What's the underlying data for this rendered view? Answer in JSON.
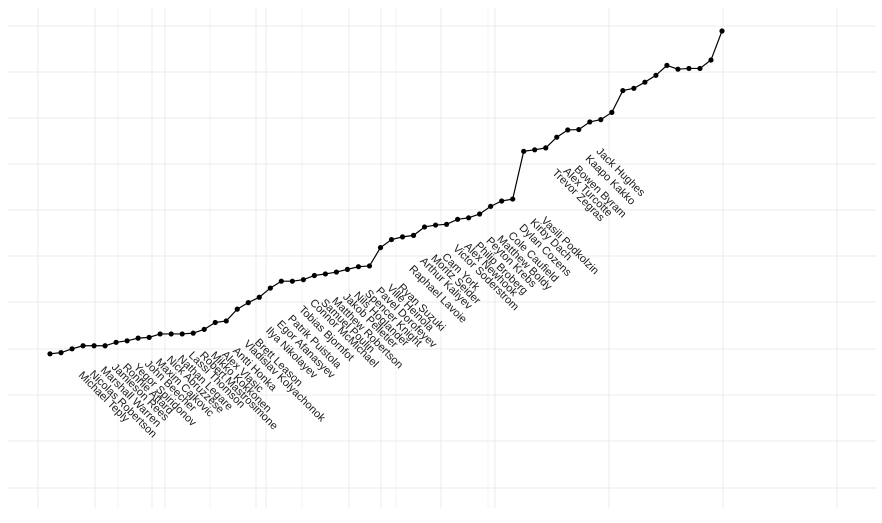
{
  "chart_data": {
    "type": "line",
    "title": "",
    "xlabel": "",
    "ylabel": "",
    "grid": true,
    "colors": {
      "line": "#000000",
      "point": "#000000",
      "grid": "#ebebeb",
      "background": "#ffffff"
    },
    "y_range": [
      0,
      1
    ],
    "points": [
      {
        "rank": 62,
        "name": "Michael Teply",
        "value": 0.155
      },
      {
        "rank": 61,
        "name": "Nicolas Robertson",
        "value": 0.158
      },
      {
        "rank": 60,
        "name": "Marshall Warren",
        "value": 0.168
      },
      {
        "rank": 59,
        "name": "Jamieson Rees",
        "value": 0.176
      },
      {
        "rank": 58,
        "name": "Ronnie Attard",
        "value": 0.176
      },
      {
        "rank": 57,
        "name": "Yegor Spiridonov",
        "value": 0.176
      },
      {
        "rank": 56,
        "name": "John Beecher",
        "value": 0.185
      },
      {
        "rank": 55,
        "name": "Maxim Cajkovic",
        "value": 0.189
      },
      {
        "rank": 54,
        "name": "Nick Abruzzese",
        "value": 0.196
      },
      {
        "rank": 53,
        "name": "Nathan Legare",
        "value": 0.198
      },
      {
        "rank": 52,
        "name": "Lassi Thomson",
        "value": 0.207
      },
      {
        "rank": 51,
        "name": "Robert Mastrosimone",
        "value": 0.207
      },
      {
        "rank": 50,
        "name": "Mikko Kokkonen",
        "value": 0.207
      },
      {
        "rank": 49,
        "name": "Alex Vlasic",
        "value": 0.209
      },
      {
        "rank": 48,
        "name": "Antti Honka",
        "value": 0.219
      },
      {
        "rank": 47,
        "name": "Vladislav Kolyachonok",
        "value": 0.237
      },
      {
        "rank": 46,
        "name": "Brett Leason",
        "value": 0.241
      },
      {
        "rank": 45,
        "name": "Ilya Nikolayev",
        "value": 0.272
      },
      {
        "rank": 44,
        "name": "Egor Afanasyev",
        "value": 0.289
      },
      {
        "rank": 43,
        "name": "Patrik Puistola",
        "value": 0.303
      },
      {
        "rank": 42,
        "name": "Tobias Bjornfot",
        "value": 0.327
      },
      {
        "rank": 41,
        "name": "Connor McMichael",
        "value": 0.345
      },
      {
        "rank": 40,
        "name": "Samuel Poulin",
        "value": 0.345
      },
      {
        "rank": 39,
        "name": "Matthew Robertson",
        "value": 0.349
      },
      {
        "rank": 38,
        "name": "Jakob Pelletier",
        "value": 0.36
      },
      {
        "rank": 37,
        "name": "Nils Hoglander",
        "value": 0.364
      },
      {
        "rank": 36,
        "name": "Spencer Knight",
        "value": 0.369
      },
      {
        "rank": 35,
        "name": "Pavel Dorofeyev",
        "value": 0.376
      },
      {
        "rank": 34,
        "name": "Ville Heinola",
        "value": 0.383
      },
      {
        "rank": 33,
        "name": "Ryan Suzuki",
        "value": 0.385
      },
      {
        "rank": 32,
        "name": "Raphael Lavoie",
        "value": 0.433
      },
      {
        "rank": 31,
        "name": "Arthur Kaliyev",
        "value": 0.454
      },
      {
        "rank": 30,
        "name": "Moritz Seider",
        "value": 0.461
      },
      {
        "rank": 29,
        "name": "Cam York",
        "value": 0.465
      },
      {
        "rank": 28,
        "name": "Victor Soderstrom",
        "value": 0.487
      },
      {
        "rank": 27,
        "name": "Alex Newhook",
        "value": 0.492
      },
      {
        "rank": 26,
        "name": "Philip Broberg",
        "value": 0.494
      },
      {
        "rank": 25,
        "name": "Peyton Krebs",
        "value": 0.507
      },
      {
        "rank": 24,
        "name": "Matthew Boldy",
        "value": 0.511
      },
      {
        "rank": 23,
        "name": "Cole Caufield",
        "value": 0.521
      },
      {
        "rank": 22,
        "name": "Dylan Cozens",
        "value": 0.541
      },
      {
        "rank": 21,
        "name": "Kirby Dach",
        "value": 0.555
      },
      {
        "rank": 20,
        "name": "Vasili Podkolzin",
        "value": 0.56
      },
      {
        "rank": 19,
        "name": "Trevor Zegras",
        "value": 0.685
      },
      {
        "rank": 18,
        "name": "Alex Turcotte",
        "value": 0.689
      },
      {
        "rank": 17,
        "name": "Bowen Byram",
        "value": 0.694
      },
      {
        "rank": 16,
        "name": "Kaapo Kakko",
        "value": 0.722
      },
      {
        "rank": 15,
        "name": "Jack Hughes",
        "value": 0.741
      },
      {
        "rank": 14,
        "name": "",
        "value": 0.742
      },
      {
        "rank": 13,
        "name": "",
        "value": 0.762
      },
      {
        "rank": 12,
        "name": "",
        "value": 0.768
      },
      {
        "rank": 11,
        "name": "",
        "value": 0.787
      },
      {
        "rank": 10,
        "name": "",
        "value": 0.844
      },
      {
        "rank": 9,
        "name": "",
        "value": 0.85
      },
      {
        "rank": 8,
        "name": "",
        "value": 0.866
      },
      {
        "rank": 7,
        "name": "",
        "value": 0.884
      },
      {
        "rank": 6,
        "name": "",
        "value": 0.91
      },
      {
        "rank": 5,
        "name": "",
        "value": 0.9
      },
      {
        "rank": 4,
        "name": "",
        "value": 0.902
      },
      {
        "rank": 3,
        "name": "",
        "value": 0.902
      },
      {
        "rank": 2,
        "name": "",
        "value": 0.924
      },
      {
        "rank": 1,
        "name": "",
        "value": 1.0
      }
    ]
  }
}
